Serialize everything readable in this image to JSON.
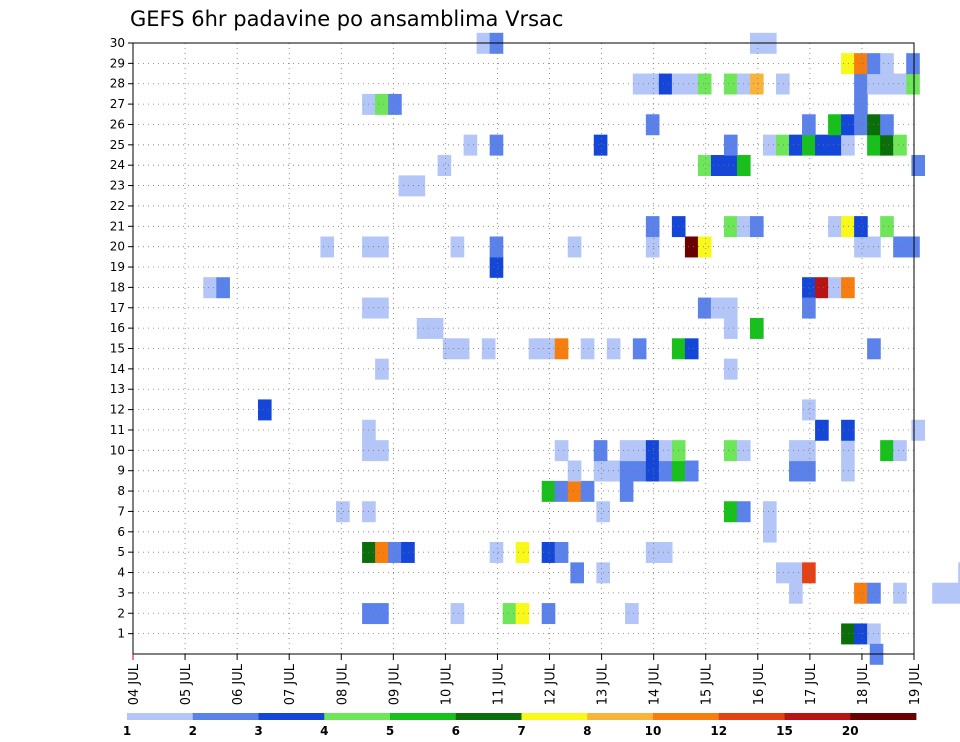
{
  "chart_data": {
    "type": "heatmap",
    "title": "GEFS 6hr padavine po ansamblima Vrsac",
    "x_tick_labels": [
      "04 JUL",
      "05 JUL",
      "06 JUL",
      "07 JUL",
      "08 JUL",
      "09 JUL",
      "10 JUL",
      "11 JUL",
      "12 JUL",
      "13 JUL",
      "14 JUL",
      "15 JUL",
      "16 JUL",
      "17 JUL",
      "18 JUL",
      "19 JUL"
    ],
    "y_tick_labels": [
      "1",
      "2",
      "3",
      "4",
      "5",
      "6",
      "7",
      "8",
      "9",
      "10",
      "11",
      "12",
      "13",
      "14",
      "15",
      "16",
      "17",
      "18",
      "19",
      "20",
      "21",
      "22",
      "23",
      "24",
      "25",
      "26",
      "27",
      "28",
      "29",
      "30"
    ],
    "ylim": [
      0,
      30
    ],
    "x_range_days": [
      0,
      15
    ],
    "grid": true,
    "colorbar": {
      "placement": "bottom",
      "labels": [
        "1",
        "2",
        "3",
        "4",
        "5",
        "6",
        "7",
        "8",
        "10",
        "12",
        "15",
        "20"
      ],
      "colors": [
        "#b3c6f7",
        "#5a82ea",
        "#1446d8",
        "#6fe65a",
        "#18c01c",
        "#0b6e0b",
        "#f8f81a",
        "#f8b43a",
        "#f67d0e",
        "#e44214",
        "#b81414",
        "#6a0000"
      ]
    },
    "cells": [
      {
        "d": 13.6,
        "m": 1,
        "c": 5
      },
      {
        "d": 13.85,
        "m": 1,
        "c": 2
      },
      {
        "d": 14.1,
        "m": 1,
        "c": 0
      },
      {
        "d": 15.95,
        "m": 1,
        "c": 0
      },
      {
        "d": 14.15,
        "m": 0,
        "c": 1
      },
      {
        "d": 4.4,
        "m": 2,
        "c": 1
      },
      {
        "d": 4.65,
        "m": 2,
        "c": 1
      },
      {
        "d": 6.1,
        "m": 2,
        "c": 0
      },
      {
        "d": 7.1,
        "m": 2,
        "c": 3
      },
      {
        "d": 7.35,
        "m": 2,
        "c": 6
      },
      {
        "d": 7.85,
        "m": 2,
        "c": 1
      },
      {
        "d": 9.45,
        "m": 2,
        "c": 0
      },
      {
        "d": 12.6,
        "m": 3,
        "c": 0
      },
      {
        "d": 13.85,
        "m": 3,
        "c": 8
      },
      {
        "d": 14.1,
        "m": 3,
        "c": 1
      },
      {
        "d": 14.6,
        "m": 3,
        "c": 0
      },
      {
        "d": 15.35,
        "m": 3,
        "c": 0
      },
      {
        "d": 15.6,
        "m": 3,
        "c": 0
      },
      {
        "d": 15.85,
        "m": 3,
        "c": 0
      },
      {
        "d": 8.4,
        "m": 4,
        "c": 1
      },
      {
        "d": 8.9,
        "m": 4,
        "c": 0
      },
      {
        "d": 12.35,
        "m": 4,
        "c": 0
      },
      {
        "d": 12.6,
        "m": 4,
        "c": 0
      },
      {
        "d": 12.85,
        "m": 4,
        "c": 9
      },
      {
        "d": 15.85,
        "m": 4,
        "c": 0
      },
      {
        "d": 4.4,
        "m": 5,
        "c": 5
      },
      {
        "d": 4.65,
        "m": 5,
        "c": 8
      },
      {
        "d": 4.9,
        "m": 5,
        "c": 1
      },
      {
        "d": 5.15,
        "m": 5,
        "c": 2
      },
      {
        "d": 6.85,
        "m": 5,
        "c": 0
      },
      {
        "d": 7.35,
        "m": 5,
        "c": 6
      },
      {
        "d": 7.85,
        "m": 5,
        "c": 2
      },
      {
        "d": 8.1,
        "m": 5,
        "c": 1
      },
      {
        "d": 9.85,
        "m": 5,
        "c": 0
      },
      {
        "d": 10.1,
        "m": 5,
        "c": 0
      },
      {
        "d": 12.1,
        "m": 6,
        "c": 0
      },
      {
        "d": 3.9,
        "m": 7,
        "c": 0
      },
      {
        "d": 4.4,
        "m": 7,
        "c": 0
      },
      {
        "d": 8.9,
        "m": 7,
        "c": 0
      },
      {
        "d": 11.35,
        "m": 7,
        "c": 4
      },
      {
        "d": 11.6,
        "m": 7,
        "c": 1
      },
      {
        "d": 12.1,
        "m": 7,
        "c": 0
      },
      {
        "d": 7.85,
        "m": 8,
        "c": 4
      },
      {
        "d": 8.1,
        "m": 8,
        "c": 1
      },
      {
        "d": 8.35,
        "m": 8,
        "c": 8
      },
      {
        "d": 8.6,
        "m": 8,
        "c": 1
      },
      {
        "d": 9.35,
        "m": 8,
        "c": 1
      },
      {
        "d": 8.35,
        "m": 9,
        "c": 0
      },
      {
        "d": 8.85,
        "m": 9,
        "c": 0
      },
      {
        "d": 9.1,
        "m": 9,
        "c": 0
      },
      {
        "d": 9.35,
        "m": 9,
        "c": 1
      },
      {
        "d": 9.6,
        "m": 9,
        "c": 1
      },
      {
        "d": 9.85,
        "m": 9,
        "c": 2
      },
      {
        "d": 10.1,
        "m": 9,
        "c": 1
      },
      {
        "d": 10.35,
        "m": 9,
        "c": 4
      },
      {
        "d": 10.6,
        "m": 9,
        "c": 1
      },
      {
        "d": 12.6,
        "m": 9,
        "c": 1
      },
      {
        "d": 12.85,
        "m": 9,
        "c": 1
      },
      {
        "d": 13.6,
        "m": 9,
        "c": 0
      },
      {
        "d": 4.4,
        "m": 10,
        "c": 0
      },
      {
        "d": 4.65,
        "m": 10,
        "c": 0
      },
      {
        "d": 8.1,
        "m": 10,
        "c": 0
      },
      {
        "d": 8.85,
        "m": 10,
        "c": 1
      },
      {
        "d": 9.35,
        "m": 10,
        "c": 0
      },
      {
        "d": 9.6,
        "m": 10,
        "c": 0
      },
      {
        "d": 9.85,
        "m": 10,
        "c": 2
      },
      {
        "d": 10.1,
        "m": 10,
        "c": 0
      },
      {
        "d": 10.35,
        "m": 10,
        "c": 3
      },
      {
        "d": 11.35,
        "m": 10,
        "c": 3
      },
      {
        "d": 11.6,
        "m": 10,
        "c": 0
      },
      {
        "d": 12.6,
        "m": 10,
        "c": 0
      },
      {
        "d": 12.85,
        "m": 10,
        "c": 0
      },
      {
        "d": 13.6,
        "m": 10,
        "c": 0
      },
      {
        "d": 14.35,
        "m": 10,
        "c": 4
      },
      {
        "d": 14.6,
        "m": 10,
        "c": 0
      },
      {
        "d": 4.4,
        "m": 11,
        "c": 0
      },
      {
        "d": 13.1,
        "m": 11,
        "c": 2
      },
      {
        "d": 13.6,
        "m": 11,
        "c": 2
      },
      {
        "d": 14.95,
        "m": 11,
        "c": 0
      },
      {
        "d": 2.4,
        "m": 12,
        "c": 2
      },
      {
        "d": 12.85,
        "m": 12,
        "c": 0
      },
      {
        "d": 4.65,
        "m": 14,
        "c": 0
      },
      {
        "d": 11.35,
        "m": 14,
        "c": 0
      },
      {
        "d": 5.95,
        "m": 15,
        "c": 0
      },
      {
        "d": 6.2,
        "m": 15,
        "c": 0
      },
      {
        "d": 6.7,
        "m": 15,
        "c": 0
      },
      {
        "d": 7.6,
        "m": 15,
        "c": 0
      },
      {
        "d": 7.85,
        "m": 15,
        "c": 0
      },
      {
        "d": 8.1,
        "m": 15,
        "c": 8
      },
      {
        "d": 8.6,
        "m": 15,
        "c": 0
      },
      {
        "d": 9.1,
        "m": 15,
        "c": 0
      },
      {
        "d": 9.6,
        "m": 15,
        "c": 1
      },
      {
        "d": 10.35,
        "m": 15,
        "c": 4
      },
      {
        "d": 10.6,
        "m": 15,
        "c": 2
      },
      {
        "d": 14.1,
        "m": 15,
        "c": 1
      },
      {
        "d": 5.45,
        "m": 16,
        "c": 0
      },
      {
        "d": 5.7,
        "m": 16,
        "c": 0
      },
      {
        "d": 11.35,
        "m": 16,
        "c": 0
      },
      {
        "d": 11.85,
        "m": 16,
        "c": 4
      },
      {
        "d": 4.4,
        "m": 17,
        "c": 0
      },
      {
        "d": 4.65,
        "m": 17,
        "c": 0
      },
      {
        "d": 10.85,
        "m": 17,
        "c": 1
      },
      {
        "d": 11.1,
        "m": 17,
        "c": 0
      },
      {
        "d": 11.35,
        "m": 17,
        "c": 0
      },
      {
        "d": 12.85,
        "m": 18,
        "c": 2
      },
      {
        "d": 13.1,
        "m": 18,
        "c": 10
      },
      {
        "d": 13.35,
        "m": 18,
        "c": 0
      },
      {
        "d": 13.6,
        "m": 18,
        "c": 8
      },
      {
        "d": 12.85,
        "m": 17,
        "c": 1
      },
      {
        "d": 1.35,
        "m": 18,
        "c": 0
      },
      {
        "d": 1.6,
        "m": 18,
        "c": 1
      },
      {
        "d": 6.85,
        "m": 19,
        "c": 2
      },
      {
        "d": 3.6,
        "m": 20,
        "c": 0
      },
      {
        "d": 4.4,
        "m": 20,
        "c": 0
      },
      {
        "d": 4.65,
        "m": 20,
        "c": 0
      },
      {
        "d": 6.1,
        "m": 20,
        "c": 0
      },
      {
        "d": 6.85,
        "m": 20,
        "c": 1
      },
      {
        "d": 8.35,
        "m": 20,
        "c": 0
      },
      {
        "d": 9.85,
        "m": 20,
        "c": 0
      },
      {
        "d": 10.6,
        "m": 20,
        "c": 11
      },
      {
        "d": 10.85,
        "m": 20,
        "c": 6
      },
      {
        "d": 13.85,
        "m": 20,
        "c": 0
      },
      {
        "d": 14.1,
        "m": 20,
        "c": 0
      },
      {
        "d": 14.6,
        "m": 20,
        "c": 1
      },
      {
        "d": 14.85,
        "m": 20,
        "c": 1
      },
      {
        "d": 9.85,
        "m": 21,
        "c": 1
      },
      {
        "d": 10.35,
        "m": 21,
        "c": 2
      },
      {
        "d": 11.35,
        "m": 21,
        "c": 3
      },
      {
        "d": 11.6,
        "m": 21,
        "c": 0
      },
      {
        "d": 11.85,
        "m": 21,
        "c": 1
      },
      {
        "d": 13.35,
        "m": 21,
        "c": 0
      },
      {
        "d": 13.6,
        "m": 21,
        "c": 6
      },
      {
        "d": 13.85,
        "m": 21,
        "c": 2
      },
      {
        "d": 14.35,
        "m": 21,
        "c": 3
      },
      {
        "d": 5.1,
        "m": 23,
        "c": 0
      },
      {
        "d": 5.35,
        "m": 23,
        "c": 0
      },
      {
        "d": 5.85,
        "m": 24,
        "c": 0
      },
      {
        "d": 10.85,
        "m": 24,
        "c": 3
      },
      {
        "d": 11.1,
        "m": 24,
        "c": 2
      },
      {
        "d": 11.35,
        "m": 24,
        "c": 2
      },
      {
        "d": 11.6,
        "m": 24,
        "c": 4
      },
      {
        "d": 14.95,
        "m": 24,
        "c": 1
      },
      {
        "d": 6.35,
        "m": 25,
        "c": 0
      },
      {
        "d": 6.85,
        "m": 25,
        "c": 1
      },
      {
        "d": 8.85,
        "m": 25,
        "c": 2
      },
      {
        "d": 11.35,
        "m": 25,
        "c": 1
      },
      {
        "d": 12.1,
        "m": 25,
        "c": 0
      },
      {
        "d": 12.35,
        "m": 25,
        "c": 3
      },
      {
        "d": 12.6,
        "m": 25,
        "c": 2
      },
      {
        "d": 12.85,
        "m": 25,
        "c": 4
      },
      {
        "d": 13.1,
        "m": 25,
        "c": 2
      },
      {
        "d": 13.35,
        "m": 25,
        "c": 2
      },
      {
        "d": 13.6,
        "m": 25,
        "c": 0
      },
      {
        "d": 14.1,
        "m": 25,
        "c": 4
      },
      {
        "d": 14.35,
        "m": 25,
        "c": 5
      },
      {
        "d": 14.6,
        "m": 25,
        "c": 3
      },
      {
        "d": 9.85,
        "m": 26,
        "c": 1
      },
      {
        "d": 12.85,
        "m": 26,
        "c": 1
      },
      {
        "d": 13.35,
        "m": 26,
        "c": 4
      },
      {
        "d": 13.6,
        "m": 26,
        "c": 2
      },
      {
        "d": 13.85,
        "m": 26,
        "c": 1
      },
      {
        "d": 14.1,
        "m": 26,
        "c": 5
      },
      {
        "d": 14.35,
        "m": 26,
        "c": 1
      },
      {
        "d": 4.4,
        "m": 27,
        "c": 0
      },
      {
        "d": 4.65,
        "m": 27,
        "c": 3
      },
      {
        "d": 4.9,
        "m": 27,
        "c": 1
      },
      {
        "d": 13.85,
        "m": 27,
        "c": 1
      },
      {
        "d": 9.6,
        "m": 28,
        "c": 0
      },
      {
        "d": 9.85,
        "m": 28,
        "c": 0
      },
      {
        "d": 10.1,
        "m": 28,
        "c": 2
      },
      {
        "d": 10.35,
        "m": 28,
        "c": 0
      },
      {
        "d": 10.6,
        "m": 28,
        "c": 0
      },
      {
        "d": 10.85,
        "m": 28,
        "c": 3
      },
      {
        "d": 11.35,
        "m": 28,
        "c": 3
      },
      {
        "d": 11.6,
        "m": 28,
        "c": 0
      },
      {
        "d": 11.85,
        "m": 28,
        "c": 7
      },
      {
        "d": 12.35,
        "m": 28,
        "c": 0
      },
      {
        "d": 13.85,
        "m": 28,
        "c": 1
      },
      {
        "d": 14.1,
        "m": 28,
        "c": 0
      },
      {
        "d": 14.35,
        "m": 28,
        "c": 0
      },
      {
        "d": 14.6,
        "m": 28,
        "c": 0
      },
      {
        "d": 14.85,
        "m": 28,
        "c": 3
      },
      {
        "d": 13.6,
        "m": 29,
        "c": 6
      },
      {
        "d": 13.85,
        "m": 29,
        "c": 8
      },
      {
        "d": 14.1,
        "m": 29,
        "c": 1
      },
      {
        "d": 14.35,
        "m": 29,
        "c": 0
      },
      {
        "d": 14.85,
        "m": 29,
        "c": 1
      },
      {
        "d": 6.6,
        "m": 30,
        "c": 0
      },
      {
        "d": 6.85,
        "m": 30,
        "c": 1
      },
      {
        "d": 11.85,
        "m": 30,
        "c": 0
      },
      {
        "d": 12.1,
        "m": 30,
        "c": 0
      }
    ]
  }
}
